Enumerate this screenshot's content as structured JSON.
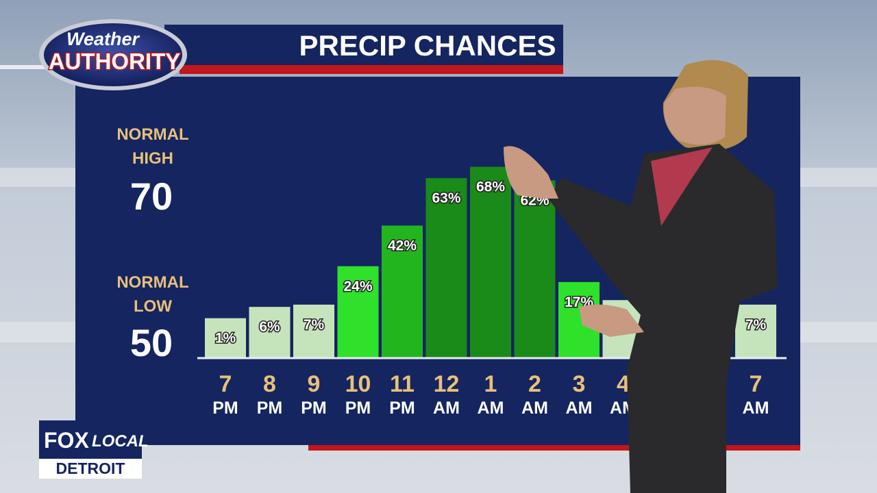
{
  "logo": {
    "line1": "Weather",
    "line2": "AUTHORITY"
  },
  "normals": {
    "high_label": "NORMAL HIGH",
    "high": "70",
    "low_label": "NORMAL LOW",
    "low": "50"
  },
  "station": {
    "brand": "FOX",
    "brand_suffix": "LOCAL",
    "city": "DETROIT"
  },
  "chart_data": {
    "type": "bar",
    "title": "PRECIP CHANCES",
    "categories": [
      {
        "hour": "7",
        "period": "PM"
      },
      {
        "hour": "8",
        "period": "PM"
      },
      {
        "hour": "9",
        "period": "PM"
      },
      {
        "hour": "10",
        "period": "PM"
      },
      {
        "hour": "11",
        "period": "PM"
      },
      {
        "hour": "12",
        "period": "AM"
      },
      {
        "hour": "1",
        "period": "AM"
      },
      {
        "hour": "2",
        "period": "AM"
      },
      {
        "hour": "3",
        "period": "AM"
      },
      {
        "hour": "4",
        "period": "AM"
      },
      null,
      null,
      {
        "hour": "7",
        "period": "AM"
      }
    ],
    "values": [
      1,
      6,
      7,
      24,
      42,
      63,
      68,
      62,
      17,
      9,
      null,
      null,
      7
    ],
    "value_labels": [
      "1%",
      "6%",
      "7%",
      "24%",
      "42%",
      "63%",
      "68%",
      "62%",
      "17%",
      null,
      null,
      null,
      "7%"
    ],
    "colors": [
      "#c6e4bc",
      "#c6e4bc",
      "#c6e4bc",
      "#2fe12a",
      "#22b51e",
      "#1a8a18",
      "#1a8a18",
      "#1a8a18",
      "#2fe12a",
      "#c6e4bc",
      null,
      null,
      "#c6e4bc"
    ]
  }
}
